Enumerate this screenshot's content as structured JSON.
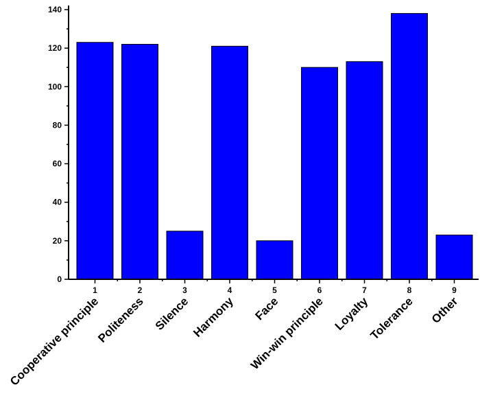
{
  "chart_data": {
    "type": "bar",
    "x": [
      1,
      2,
      3,
      4,
      5,
      6,
      7,
      8,
      9
    ],
    "categories": [
      "Cooperative principle",
      "Politeness",
      "Silence",
      "Harmony",
      "Face",
      "Win-win principle",
      "Loyalty",
      "Tolerance",
      "Other"
    ],
    "values": [
      123,
      122,
      25,
      121,
      20,
      110,
      113,
      138,
      23
    ],
    "ylim": [
      0,
      140
    ],
    "yticks": [
      0,
      20,
      40,
      60,
      80,
      100,
      120,
      140
    ],
    "title": "",
    "xlabel": "",
    "ylabel": "",
    "grid": false,
    "colors": {
      "bar": "#0000ff",
      "bar_outline": "#000000"
    }
  }
}
